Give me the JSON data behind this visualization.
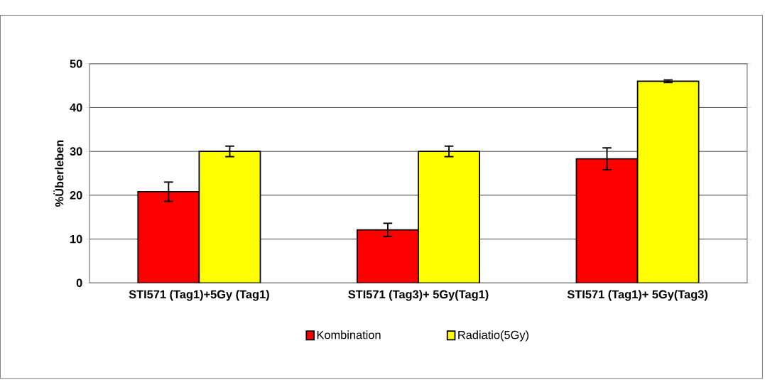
{
  "chart_data": {
    "type": "bar",
    "ylabel": "%Überleben",
    "categories": [
      "STI571 (Tag1)+5Gy (Tag1)",
      "STI571 (Tag3)+ 5Gy(Tag1)",
      "STI571 (Tag1)+ 5Gy(Tag3)"
    ],
    "series": [
      {
        "name": "Kombination",
        "color": "#ff0000",
        "values": [
          20.8,
          12.1,
          28.3
        ],
        "errors": [
          2.2,
          1.5,
          2.5
        ]
      },
      {
        "name": "Radiatio(5Gy)",
        "color": "#ffff00",
        "values": [
          30.0,
          30.0,
          46.0
        ],
        "errors": [
          1.2,
          1.2,
          0.3
        ]
      }
    ],
    "ylim": [
      0,
      50
    ],
    "yticks": [
      0,
      10,
      20,
      30,
      40,
      50
    ],
    "grid": "y",
    "legend": "bottom"
  }
}
